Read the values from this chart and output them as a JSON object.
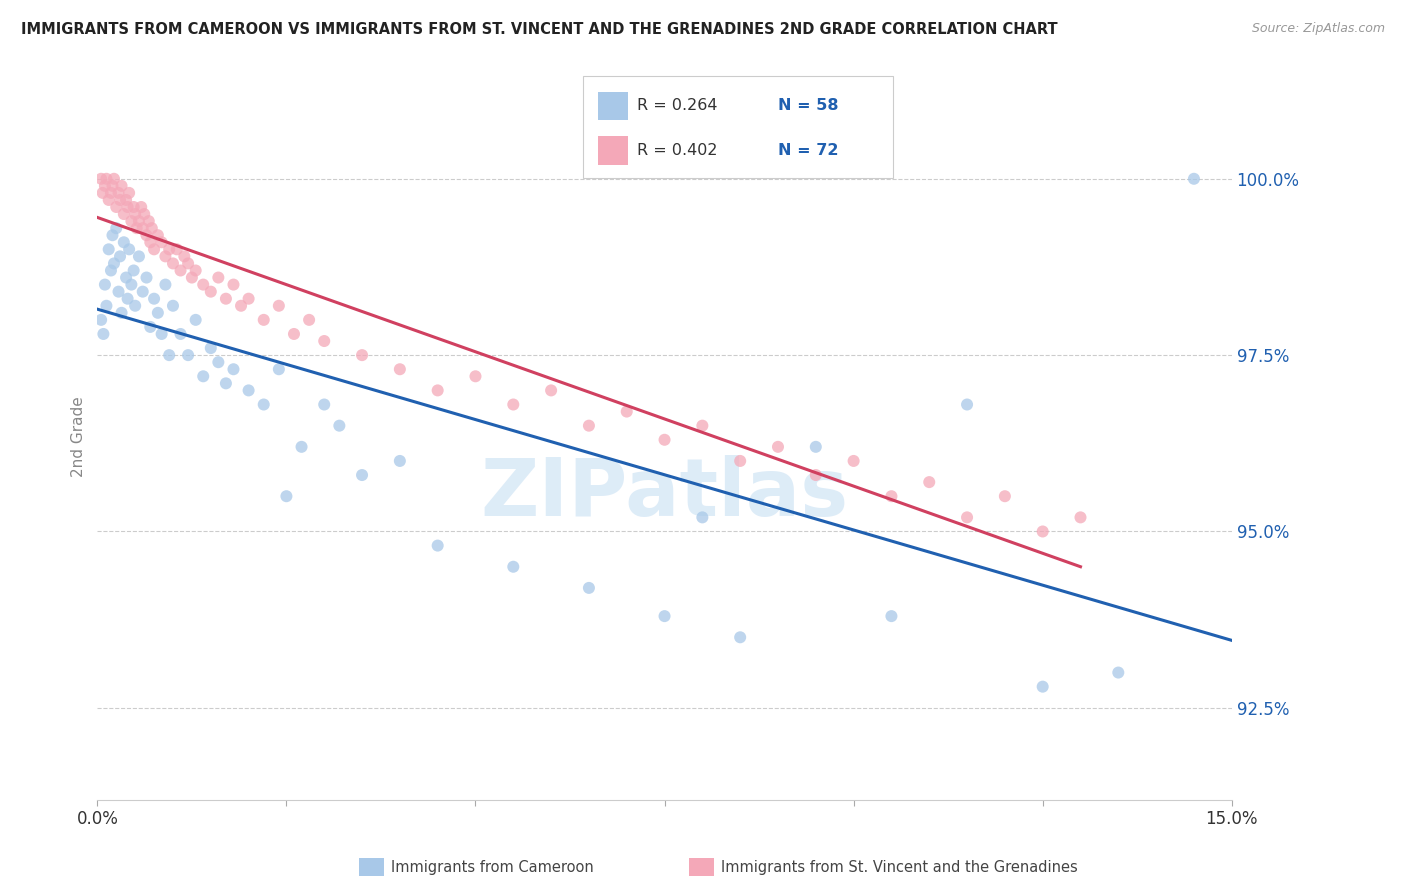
{
  "title": "IMMIGRANTS FROM CAMEROON VS IMMIGRANTS FROM ST. VINCENT AND THE GRENADINES 2ND GRADE CORRELATION CHART",
  "source": "Source: ZipAtlas.com",
  "ylabel": "2nd Grade",
  "yticks": [
    92.5,
    95.0,
    97.5,
    100.0
  ],
  "ytick_labels": [
    "92.5%",
    "95.0%",
    "97.5%",
    "100.0%"
  ],
  "xlim": [
    0.0,
    15.0
  ],
  "ylim": [
    91.2,
    101.5
  ],
  "watermark": "ZIPatlas",
  "color_cameroon": "#a8c8e8",
  "color_stv": "#f4a8b8",
  "color_line_cameroon": "#2060b0",
  "color_line_stv": "#d04060",
  "color_legend_text_blue": "#2060b0",
  "color_yticklabel": "#2060b0",
  "scatter_alpha": 0.75,
  "scatter_size": 75,
  "cameroon_x": [
    0.05,
    0.08,
    0.1,
    0.12,
    0.15,
    0.18,
    0.2,
    0.22,
    0.25,
    0.28,
    0.3,
    0.32,
    0.35,
    0.38,
    0.4,
    0.42,
    0.45,
    0.48,
    0.5,
    0.55,
    0.6,
    0.65,
    0.7,
    0.75,
    0.8,
    0.85,
    0.9,
    0.95,
    1.0,
    1.1,
    1.2,
    1.3,
    1.4,
    1.5,
    1.6,
    1.7,
    1.8,
    2.0,
    2.2,
    2.4,
    2.5,
    2.7,
    3.0,
    3.2,
    3.5,
    4.0,
    4.5,
    5.5,
    6.5,
    7.5,
    8.0,
    8.5,
    9.5,
    10.5,
    11.5,
    12.5,
    13.5,
    14.5
  ],
  "cameroon_y": [
    98.0,
    97.8,
    98.5,
    98.2,
    99.0,
    98.7,
    99.2,
    98.8,
    99.3,
    98.4,
    98.9,
    98.1,
    99.1,
    98.6,
    98.3,
    99.0,
    98.5,
    98.7,
    98.2,
    98.9,
    98.4,
    98.6,
    97.9,
    98.3,
    98.1,
    97.8,
    98.5,
    97.5,
    98.2,
    97.8,
    97.5,
    98.0,
    97.2,
    97.6,
    97.4,
    97.1,
    97.3,
    97.0,
    96.8,
    97.3,
    95.5,
    96.2,
    96.8,
    96.5,
    95.8,
    96.0,
    94.8,
    94.5,
    94.2,
    93.8,
    95.2,
    93.5,
    96.2,
    93.8,
    96.8,
    92.8,
    93.0,
    100.0
  ],
  "stv_x": [
    0.05,
    0.07,
    0.1,
    0.12,
    0.15,
    0.18,
    0.2,
    0.22,
    0.25,
    0.28,
    0.3,
    0.32,
    0.35,
    0.38,
    0.4,
    0.42,
    0.45,
    0.48,
    0.5,
    0.52,
    0.55,
    0.58,
    0.6,
    0.62,
    0.65,
    0.68,
    0.7,
    0.72,
    0.75,
    0.8,
    0.85,
    0.9,
    0.95,
    1.0,
    1.05,
    1.1,
    1.15,
    1.2,
    1.25,
    1.3,
    1.4,
    1.5,
    1.6,
    1.7,
    1.8,
    1.9,
    2.0,
    2.2,
    2.4,
    2.6,
    2.8,
    3.0,
    3.5,
    4.0,
    4.5,
    5.0,
    5.5,
    6.0,
    6.5,
    7.0,
    7.5,
    8.0,
    8.5,
    9.0,
    9.5,
    10.0,
    10.5,
    11.0,
    11.5,
    12.0,
    12.5,
    13.0
  ],
  "stv_y": [
    100.0,
    99.8,
    99.9,
    100.0,
    99.7,
    99.8,
    99.9,
    100.0,
    99.6,
    99.8,
    99.7,
    99.9,
    99.5,
    99.7,
    99.6,
    99.8,
    99.4,
    99.6,
    99.5,
    99.3,
    99.4,
    99.6,
    99.3,
    99.5,
    99.2,
    99.4,
    99.1,
    99.3,
    99.0,
    99.2,
    99.1,
    98.9,
    99.0,
    98.8,
    99.0,
    98.7,
    98.9,
    98.8,
    98.6,
    98.7,
    98.5,
    98.4,
    98.6,
    98.3,
    98.5,
    98.2,
    98.3,
    98.0,
    98.2,
    97.8,
    98.0,
    97.7,
    97.5,
    97.3,
    97.0,
    97.2,
    96.8,
    97.0,
    96.5,
    96.7,
    96.3,
    96.5,
    96.0,
    96.2,
    95.8,
    96.0,
    95.5,
    95.7,
    95.2,
    95.5,
    95.0,
    95.2
  ]
}
